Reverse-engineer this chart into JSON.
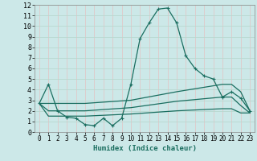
{
  "xlabel": "Humidex (Indice chaleur)",
  "xlim": [
    -0.5,
    23.5
  ],
  "ylim": [
    0,
    12
  ],
  "xticks": [
    0,
    1,
    2,
    3,
    4,
    5,
    6,
    7,
    8,
    9,
    10,
    11,
    12,
    13,
    14,
    15,
    16,
    17,
    18,
    19,
    20,
    21,
    22,
    23
  ],
  "yticks": [
    0,
    1,
    2,
    3,
    4,
    5,
    6,
    7,
    8,
    9,
    10,
    11,
    12
  ],
  "bg_outer": "#cce8e8",
  "bg_inner": "#cce8e8",
  "grid_major_color": "#e8d8d8",
  "grid_minor_color": "#e0e8e8",
  "line_color": "#1a6e60",
  "line1_x": [
    0,
    1,
    2,
    3,
    4,
    5,
    6,
    7,
    8,
    9,
    10,
    11,
    12,
    13,
    14,
    15,
    16,
    17,
    18,
    19,
    20,
    21,
    22,
    23
  ],
  "line1_y": [
    2.7,
    4.5,
    2.0,
    1.4,
    1.3,
    0.7,
    0.6,
    1.3,
    0.6,
    1.3,
    4.5,
    8.8,
    10.3,
    11.6,
    11.7,
    10.3,
    7.2,
    6.0,
    5.3,
    5.0,
    3.3,
    3.8,
    3.2,
    2.0
  ],
  "line2_x": [
    0,
    1,
    5,
    10,
    15,
    20,
    21,
    22,
    23
  ],
  "line2_y": [
    2.7,
    2.7,
    2.7,
    3.0,
    3.8,
    4.5,
    4.5,
    3.8,
    2.0
  ],
  "line3_x": [
    0,
    1,
    5,
    10,
    15,
    20,
    21,
    22,
    23
  ],
  "line3_y": [
    2.7,
    2.0,
    2.0,
    2.3,
    2.9,
    3.3,
    3.3,
    2.5,
    1.8
  ],
  "line4_x": [
    0,
    1,
    5,
    10,
    15,
    20,
    21,
    22,
    23
  ],
  "line4_y": [
    2.7,
    1.5,
    1.5,
    1.7,
    2.0,
    2.2,
    2.2,
    1.8,
    1.8
  ]
}
